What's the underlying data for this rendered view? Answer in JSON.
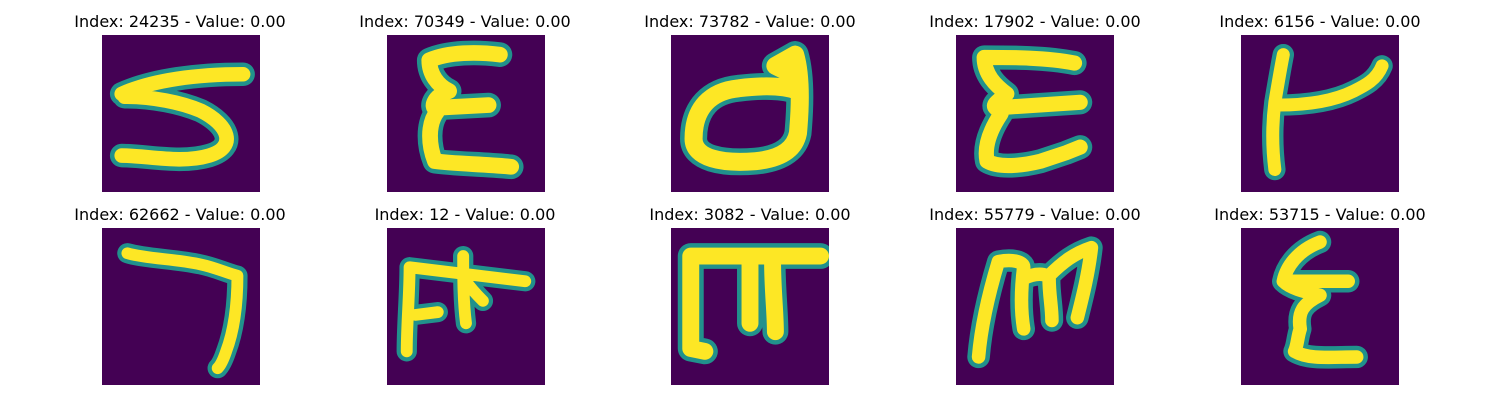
{
  "panels": [
    {
      "title": "Index: 24235 - Value: 0.00",
      "glyph": "glyph-24235"
    },
    {
      "title": "Index: 70349 - Value: 0.00",
      "glyph": "glyph-70349"
    },
    {
      "title": "Index: 73782 - Value: 0.00",
      "glyph": "glyph-73782"
    },
    {
      "title": "Index: 17902 - Value: 0.00",
      "glyph": "glyph-17902"
    },
    {
      "title": "Index: 6156 - Value: 0.00",
      "glyph": "glyph-6156"
    },
    {
      "title": "Index: 62662 - Value: 0.00",
      "glyph": "glyph-62662"
    },
    {
      "title": "Index: 12 - Value: 0.00",
      "glyph": "glyph-12"
    },
    {
      "title": "Index: 3082 - Value: 0.00",
      "glyph": "glyph-3082"
    },
    {
      "title": "Index: 55779 - Value: 0.00",
      "glyph": "glyph-55779"
    },
    {
      "title": "Index: 53715 - Value: 0.00",
      "glyph": "glyph-53715"
    }
  ],
  "colors": {
    "background": "#440154",
    "stroke_core": "#fde725",
    "stroke_edge": "#21918c"
  }
}
